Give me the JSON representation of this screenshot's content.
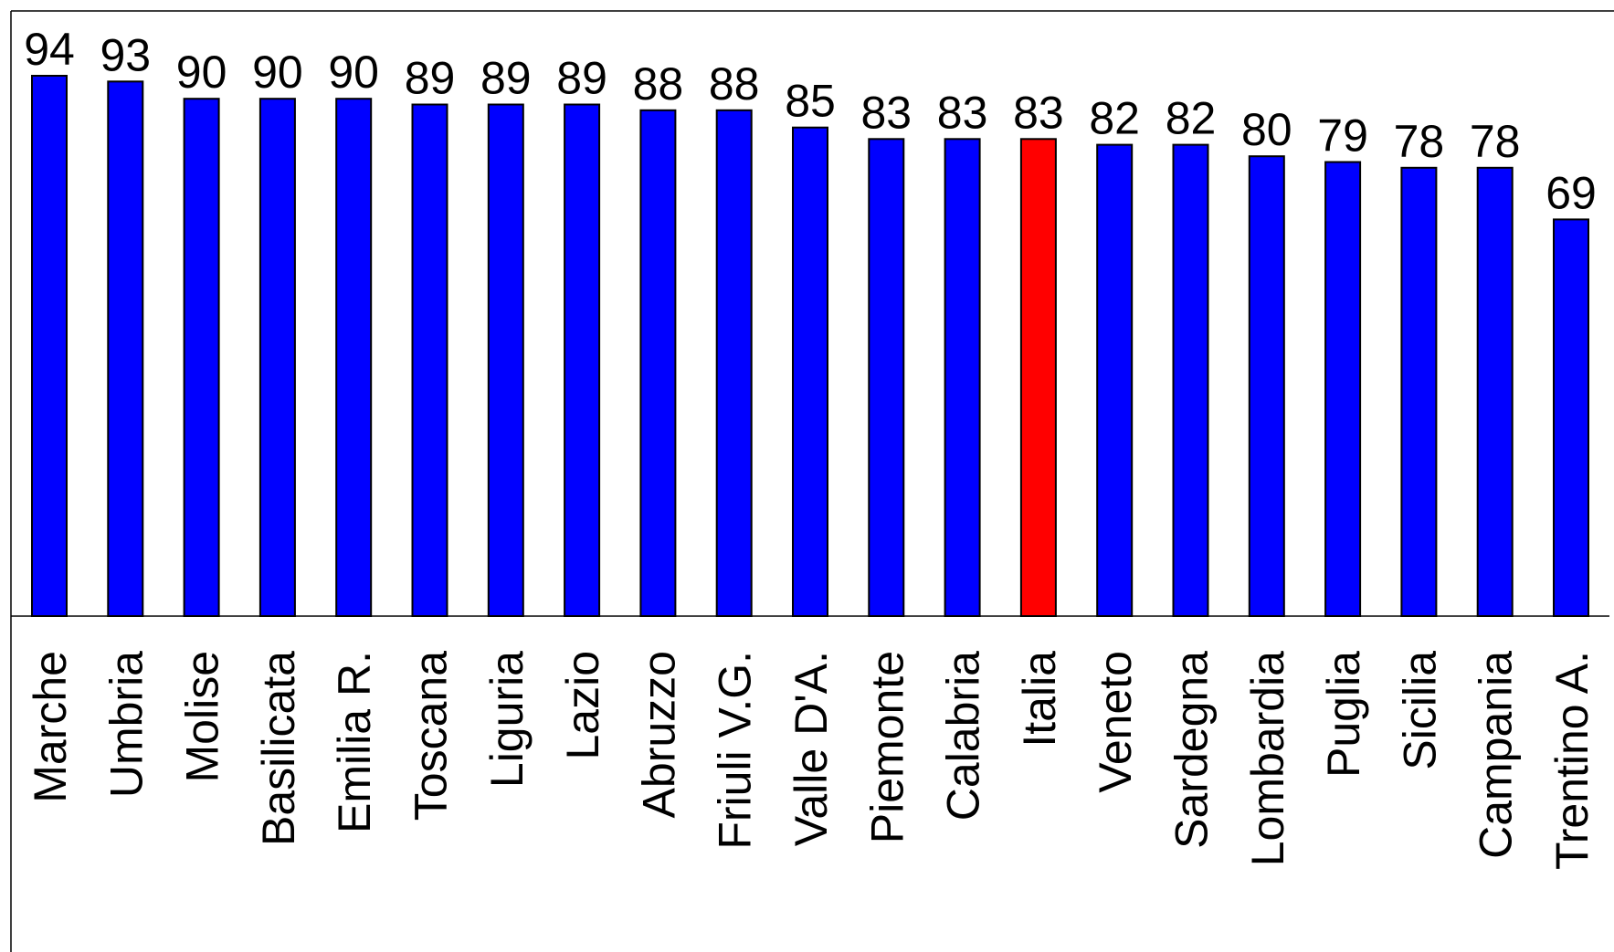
{
  "chart_data": {
    "type": "bar",
    "categories": [
      "Marche",
      "Umbria",
      "Molise",
      "Basilicata",
      "Emilia R.",
      "Toscana",
      "Liguria",
      "Lazio",
      "Abruzzo",
      "Friuli V.G.",
      "Valle D'A.",
      "Piemonte",
      "Calabria",
      "Italia",
      "Veneto",
      "Sardegna",
      "Lombardia",
      "Puglia",
      "Sicilia",
      "Campania",
      "Trentino A."
    ],
    "series": [
      {
        "values": [
          94,
          93,
          90,
          90,
          90,
          89,
          89,
          89,
          88,
          88,
          85,
          83,
          83,
          83,
          82,
          82,
          80,
          79,
          78,
          78,
          69
        ],
        "display_values": [
          94,
          93,
          90,
          90,
          90,
          89,
          89,
          89,
          88,
          88,
          85,
          83,
          83,
          83,
          82,
          82,
          80,
          79,
          78,
          78,
          69
        ]
      }
    ],
    "highlight_category": "Italia",
    "colors": {
      "bar": "#0000ff",
      "highlight": "#ff0000",
      "outline": "#000000",
      "axis": "#000000"
    },
    "ylim": [
      0,
      94
    ],
    "grid": false,
    "data_labels": true
  }
}
